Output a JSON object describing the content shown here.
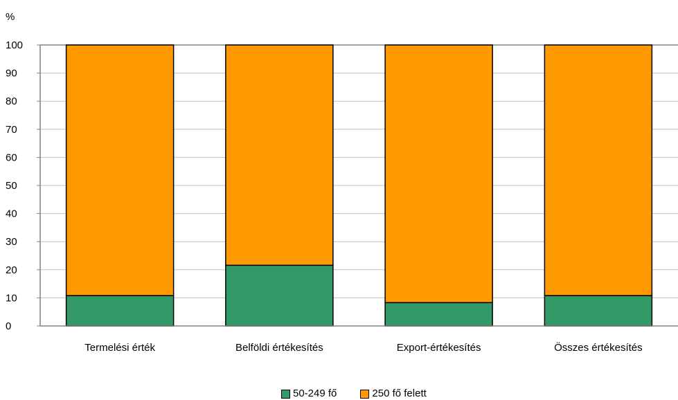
{
  "chart_data": {
    "type": "bar",
    "stacked": true,
    "unit_label": "%",
    "categories": [
      "Termelési érték",
      "Belföldi értékesítés",
      "Export-értékesítés",
      "Összes értékesítés"
    ],
    "series": [
      {
        "name": "50-249 fő",
        "color": "#339966",
        "values": [
          10.8,
          21.6,
          8.3,
          10.8
        ]
      },
      {
        "name": "250 fő felett",
        "color": "#FF9900",
        "values": [
          89.2,
          78.4,
          91.7,
          89.2
        ]
      }
    ],
    "ylim": [
      0,
      100
    ],
    "yticks": [
      0,
      10,
      20,
      30,
      40,
      50,
      60,
      70,
      80,
      90,
      100
    ],
    "grid": true,
    "legend_position": "bottom"
  }
}
